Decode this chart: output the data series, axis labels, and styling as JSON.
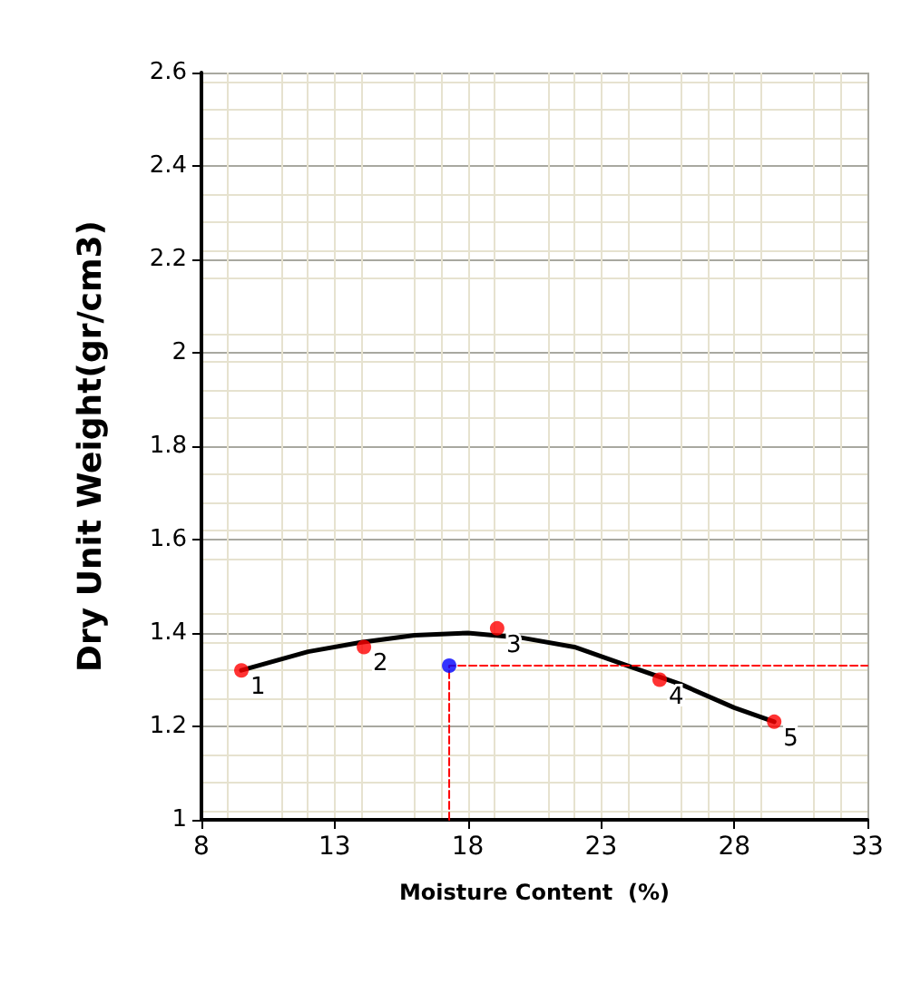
{
  "chart_data": {
    "type": "scatter",
    "xlabel": "Moisture Content  (%)",
    "ylabel": "Dry Unit Weight(gr/cm3)",
    "xlim": [
      8,
      33
    ],
    "xticks": [
      8,
      13,
      18,
      23,
      28,
      33
    ],
    "ylim": [
      1,
      2.6
    ],
    "yticks": [
      1,
      1.2,
      1.4,
      1.6,
      1.8,
      2,
      2.2,
      2.4,
      2.6
    ],
    "grid": true,
    "series": [
      {
        "type": "line",
        "color": "#000000",
        "marker": "none",
        "x": [
          9.5,
          12,
          14,
          16,
          18,
          20,
          22,
          24,
          26,
          28,
          29.5
        ],
        "values": [
          1.32,
          1.36,
          1.38,
          1.395,
          1.4,
          1.39,
          1.37,
          1.33,
          1.29,
          1.24,
          1.21
        ]
      },
      {
        "type": "line",
        "color": "#ff0000",
        "marker": "none",
        "line_style": "dashed",
        "x": [
          17.3,
          17.3,
          33
        ],
        "values": [
          1,
          1.33,
          1.33
        ]
      },
      {
        "color": "#ff0000",
        "marker": "circle",
        "x": [
          9.5,
          14.1,
          19.1,
          25.2,
          29.5
        ],
        "values": [
          1.32,
          1.37,
          1.41,
          1.3,
          1.21
        ]
      },
      {
        "color": "#0000ff",
        "marker": "circle",
        "x": [
          17.3
        ],
        "values": [
          1.33
        ]
      }
    ],
    "annotations": [
      {
        "text": "1",
        "x": 9.5,
        "y": 1.32
      },
      {
        "text": "2",
        "x": 14.1,
        "y": 1.37
      },
      {
        "text": "3",
        "x": 19.1,
        "y": 1.41
      },
      {
        "text": "4",
        "x": 25.2,
        "y": 1.3
      },
      {
        "text": "5",
        "x": 29.5,
        "y": 1.21
      }
    ]
  }
}
